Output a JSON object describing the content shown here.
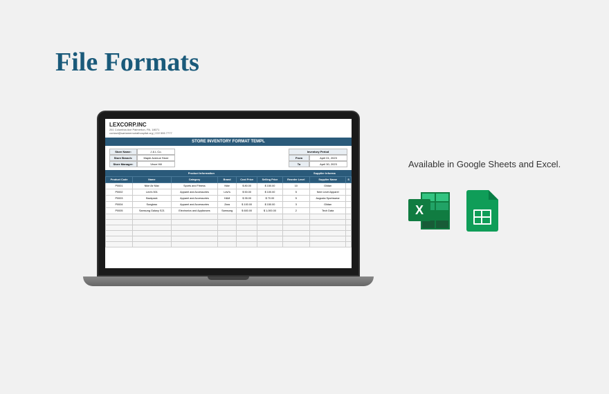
{
  "page": {
    "title": "File Formats",
    "available_text": "Available in Google Sheets and Excel.",
    "bg_color": "#f1f1f1",
    "title_color": "#1a5a7a"
  },
  "spreadsheet": {
    "company_name": "LEXCORP.INC",
    "company_address": "261 Columbia Ave Palmerton, PA, 18071",
    "company_contact": "contact@sartamemorialhospital.org | 222 555 7777",
    "doc_title": "STORE INVENTORY FORMAT TEMPL",
    "store_info": {
      "labels": {
        "name": "Store Name:",
        "branch": "Store Branch:",
        "manager": "Store Manager:"
      },
      "values": {
        "name": "J & L Co.",
        "branch": "Maple Avenue Store",
        "manager": "Vince Hill"
      }
    },
    "period": {
      "title": "Inventory Period",
      "from_label": "From",
      "to_label": "To",
      "from": "April 01, 2023",
      "to": "April 30, 2023"
    },
    "sections": {
      "product_info": "Product Information",
      "supplier_info": "Supplier Informa"
    },
    "columns": [
      "Product Code",
      "Name",
      "Category",
      "Brand",
      "Cost Price",
      "Selling Price",
      "Reorder Level",
      "Supplier Name",
      "S"
    ],
    "rows": [
      {
        "code": "P0001",
        "name": "Nike Air Max",
        "category": "Sports and Fitness",
        "brand": "Nike",
        "cost": "$ 80.00",
        "sell": "$ 150.00",
        "reorder": "10",
        "supplier": "Gildan"
      },
      {
        "code": "P0002",
        "name": "Levi's 501",
        "category": "Apparel and Accessories",
        "brand": "Levi's",
        "cost": "$ 50.00",
        "sell": "$ 100.00",
        "reorder": "5",
        "supplier": "Next Level Apparel"
      },
      {
        "code": "P0003",
        "name": "Backpack",
        "category": "Apparel and Accessories",
        "brand": "H&M",
        "cost": "$ 35.00",
        "sell": "$ 70.00",
        "reorder": "5",
        "supplier": "Augusta Sportswear"
      },
      {
        "code": "P0004",
        "name": "Sunglass",
        "category": "Apparel and Accessories",
        "brand": "Zara",
        "cost": "$ 100.00",
        "sell": "$ 150.00",
        "reorder": "3",
        "supplier": "Gildan"
      },
      {
        "code": "P0005",
        "name": "Samsung Galaxy S21",
        "category": "Electronics and Appliances",
        "brand": "Samsung",
        "cost": "$ 600.00",
        "sell": "$ 1,000.00",
        "reorder": "2",
        "supplier": "Tech Data"
      }
    ],
    "header_bg": "#2a5a7a",
    "header_fg": "#ffffff"
  },
  "icons": {
    "excel": {
      "letter": "X",
      "primary": "#107c41"
    },
    "sheets": {
      "primary": "#0f9d58"
    }
  }
}
